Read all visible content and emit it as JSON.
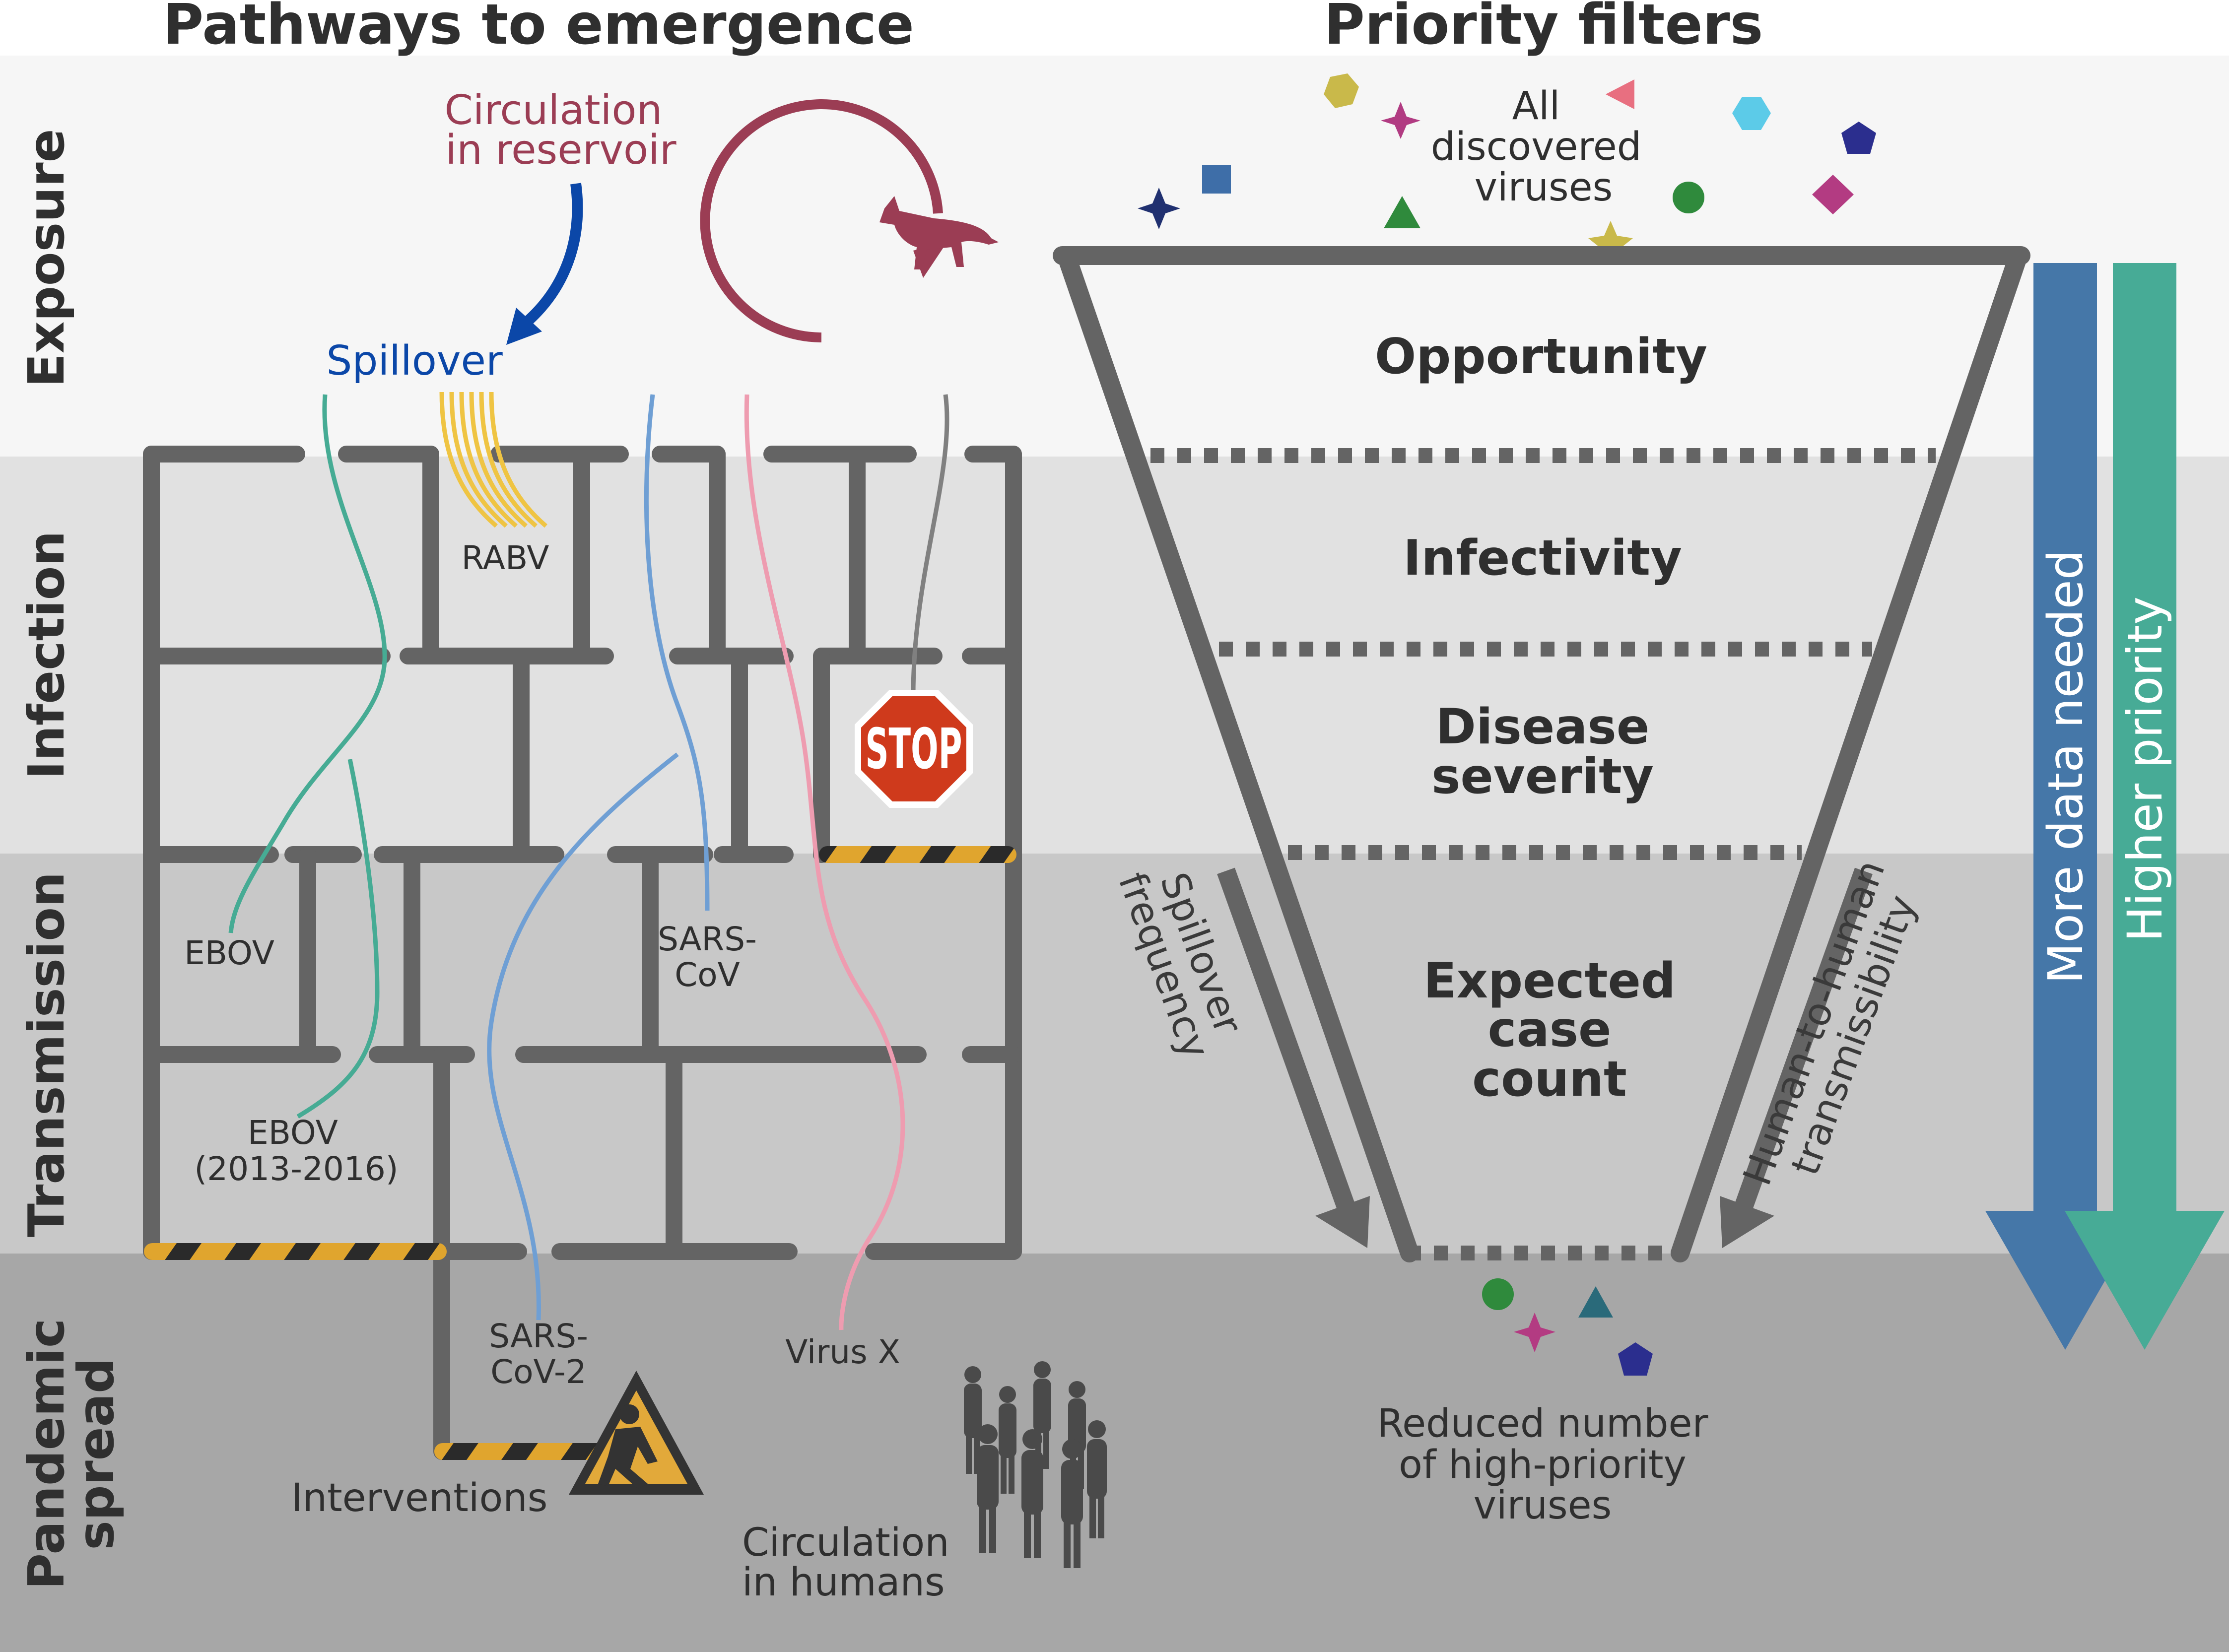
{
  "titles": {
    "left": "Pathways to emergence",
    "right": "Priority filters"
  },
  "bands": {
    "exposure": "Exposure",
    "infection": "Infection",
    "transmission": "Transmission",
    "pandemic_line1": "Pandemic",
    "pandemic_line2": "spread"
  },
  "maze": {
    "reservoir_line1": "Circulation",
    "reservoir_line2": "in reservoir",
    "spillover": "Spillover",
    "rabv": "RABV",
    "ebov": "EBOV",
    "ebov2_line1": "EBOV",
    "ebov2_line2": "(2013-2016)",
    "sarscov_line1": "SARS-",
    "sarscov_line2": "CoV",
    "sarscov2_line1": "SARS-",
    "sarscov2_line2": "CoV-2",
    "virusx": "Virus X",
    "stop": "STOP",
    "interventions": "Interventions",
    "humans_line1": "Circulation",
    "humans_line2": "in humans"
  },
  "funnel": {
    "all_line1": "All",
    "all_line2": "discovered",
    "all_line3": "viruses",
    "opportunity": "Opportunity",
    "infectivity": "Infectivity",
    "severity_line1": "Disease",
    "severity_line2": "severity",
    "expected_line1": "Expected",
    "expected_line2": "case",
    "expected_line3": "count",
    "spill_line1": "Spillover",
    "spill_line2": "frequency",
    "h2h_line1": "Human-to-human",
    "h2h_line2": "transmissibility",
    "reduced_line1": "Reduced number",
    "reduced_line2": "of high-priority",
    "reduced_line3": "viruses",
    "more_data": "More data needed",
    "higher_priority": "Higher priority"
  },
  "colors": {
    "exposure_band": "#f6f6f6",
    "infection_band": "#e1e1e1",
    "transmission_band": "#c8c8c8",
    "pandemic_band": "#a7a7a7",
    "wall": "#646464",
    "reservoir": "#9b3d54",
    "spillover": "#0b47a8",
    "rabv": "#efc443",
    "ebov": "#46ab94",
    "sars": "#6f9fd4",
    "virusx": "#ee9cb0",
    "grey_path": "#808080",
    "stop": "#cf3a1c",
    "hazard": "#e0a52e",
    "more_data_arrow": "#4577a8",
    "priority_arrow": "#47ab96"
  }
}
